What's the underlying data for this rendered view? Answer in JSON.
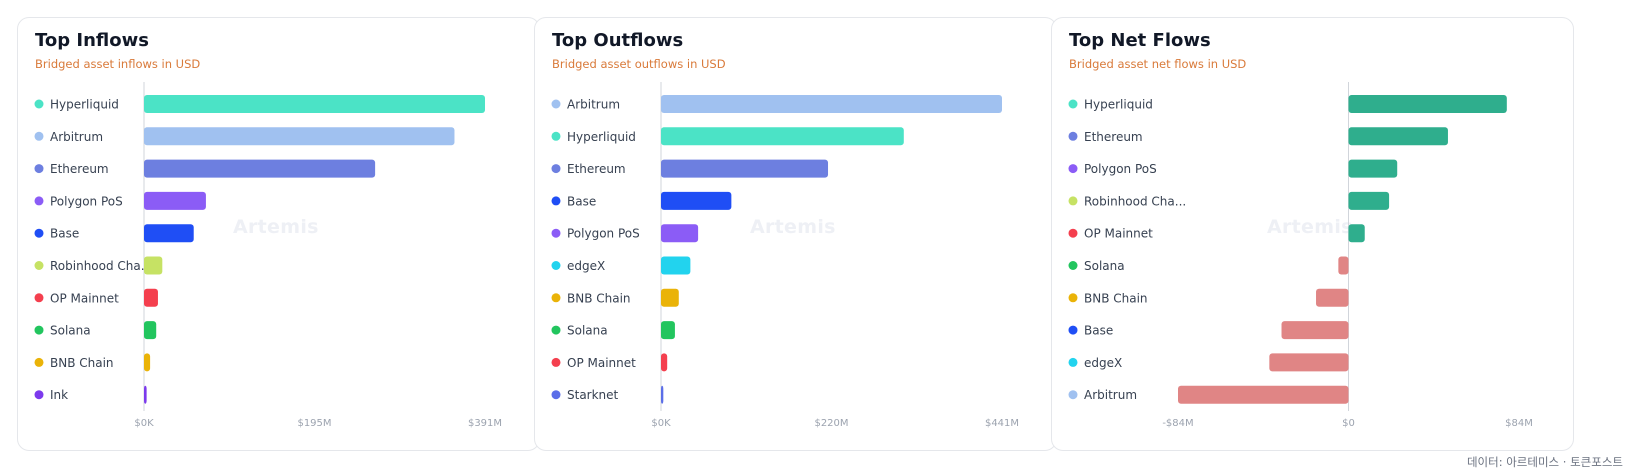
{
  "footer": "데이터: 아르테미스 · 토큰포스트",
  "chart_data": [
    {
      "type": "bar",
      "orientation": "horizontal",
      "title": "Top Inflows",
      "subtitle": "Bridged asset inflows in USD",
      "watermark": "Artemis",
      "xlim": [
        0,
        391
      ],
      "xticks": [
        "$0K",
        "$195M",
        "$391M"
      ],
      "categories": [
        "Hyperliquid",
        "Arbitrum",
        "Ethereum",
        "Polygon PoS",
        "Base",
        "Robinhood Cha...",
        "OP Mainnet",
        "Solana",
        "BNB Chain",
        "Ink"
      ],
      "values": [
        391,
        356,
        265,
        71,
        57,
        21,
        16,
        14,
        7,
        3
      ],
      "colors": [
        "#4be3c6",
        "#a0c1f0",
        "#6d7fe0",
        "#8b5cf6",
        "#1f4ef5",
        "#c6e264",
        "#f43f4e",
        "#22c55e",
        "#eab308",
        "#7c3aed"
      ]
    },
    {
      "type": "bar",
      "orientation": "horizontal",
      "title": "Top Outflows",
      "subtitle": "Bridged asset outflows in USD",
      "watermark": "Artemis",
      "xlim": [
        0,
        441
      ],
      "xticks": [
        "$0K",
        "$220M",
        "$441M"
      ],
      "categories": [
        "Arbitrum",
        "Hyperliquid",
        "Ethereum",
        "Base",
        "Polygon PoS",
        "edgeX",
        "BNB Chain",
        "Solana",
        "OP Mainnet",
        "Starknet"
      ],
      "values": [
        441,
        314,
        216,
        91,
        48,
        38,
        23,
        18,
        8,
        3
      ],
      "colors": [
        "#a0c1f0",
        "#4be3c6",
        "#6d7fe0",
        "#1f4ef5",
        "#8b5cf6",
        "#22d3ee",
        "#eab308",
        "#22c55e",
        "#f43f4e",
        "#5b6ee8"
      ]
    },
    {
      "type": "bar",
      "orientation": "horizontal",
      "title": "Top Net Flows",
      "subtitle": "Bridged asset net flows in USD",
      "watermark": "Artemis",
      "xlim": [
        -84,
        84
      ],
      "xticks": [
        "-$84M",
        "$0",
        "$84M"
      ],
      "categories": [
        "Hyperliquid",
        "Ethereum",
        "Polygon PoS",
        "Robinhood Cha...",
        "OP Mainnet",
        "Solana",
        "BNB Chain",
        "Base",
        "edgeX",
        "Arbitrum"
      ],
      "values": [
        78,
        49,
        24,
        20,
        8,
        -5,
        -16,
        -33,
        -39,
        -84
      ],
      "colors": [
        "#4be3c6",
        "#6d7fe0",
        "#8b5cf6",
        "#c6e264",
        "#f43f4e",
        "#22c55e",
        "#eab308",
        "#1f4ef5",
        "#22d3ee",
        "#a0c1f0"
      ],
      "positive_bar_color": "#2fae8d",
      "negative_bar_color": "#e08585"
    }
  ]
}
